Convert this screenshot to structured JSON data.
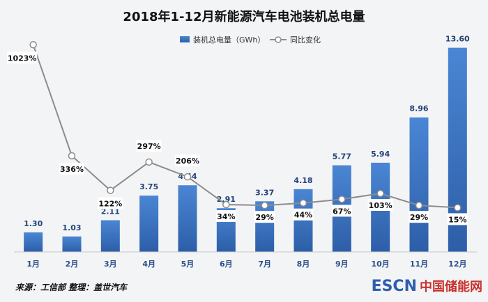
{
  "chart_data": {
    "type": "bar",
    "title": "2018年1-12月新能源汽车电池装机总电量",
    "categories": [
      "1月",
      "2月",
      "3月",
      "4月",
      "5月",
      "6月",
      "7月",
      "8月",
      "9月",
      "10月",
      "11月",
      "12月"
    ],
    "series": [
      {
        "name": "装机总电量（GWh）",
        "type": "bar",
        "values": [
          1.3,
          1.03,
          2.11,
          3.75,
          4.44,
          2.91,
          3.37,
          4.18,
          5.77,
          5.94,
          8.96,
          13.6
        ],
        "labels": [
          "1.30",
          "1.03",
          "2.11",
          "3.75",
          "4.44",
          "2.91",
          "3.37",
          "4.18",
          "5.77",
          "5.94",
          "8.96",
          "13.60"
        ]
      },
      {
        "name": "同比变化",
        "type": "line",
        "values": [
          1023,
          336,
          122,
          297,
          206,
          34,
          29,
          44,
          67,
          103,
          29,
          15
        ],
        "labels": [
          "1023%",
          "336%",
          "122%",
          "297%",
          "206%",
          "34%",
          "29%",
          "44%",
          "67%",
          "103%",
          "29%",
          "15%"
        ]
      }
    ],
    "ylim": [
      0,
      14
    ],
    "y2lim": [
      -250,
      1050
    ],
    "legend_position": "top-right",
    "grid": false,
    "colors": {
      "bar": "#3670c4",
      "line": "#8c8c8c",
      "text_value": "#24427a"
    }
  },
  "footer": {
    "source": "来源：工信部 整理：盖世汽车",
    "logo_mark": "ESCN",
    "logo_text": "中国储能网"
  }
}
